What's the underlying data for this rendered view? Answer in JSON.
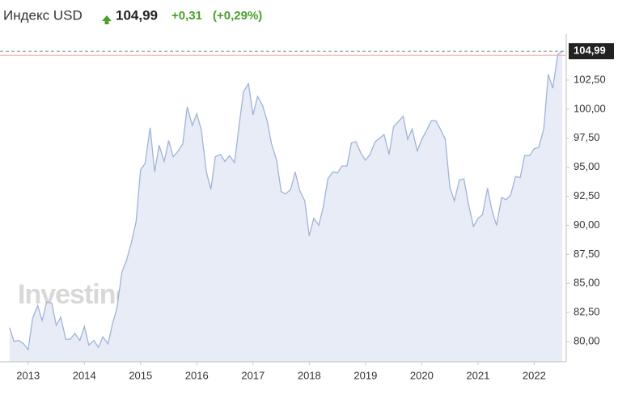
{
  "header": {
    "title": "Индекс USD",
    "price": "104,99",
    "change": "+0,31",
    "change_pct": "(+0,29%)"
  },
  "chart_data": {
    "type": "area",
    "watermark": "Investing.com",
    "color": "#9fb4d8",
    "fill": "#e8ecf6",
    "x": [
      2012.67,
      2012.75,
      2012.83,
      2012.92,
      2013,
      2013.08,
      2013.17,
      2013.25,
      2013.33,
      2013.42,
      2013.5,
      2013.58,
      2013.67,
      2013.75,
      2013.83,
      2013.92,
      2014,
      2014.08,
      2014.17,
      2014.25,
      2014.33,
      2014.42,
      2014.5,
      2014.58,
      2014.67,
      2014.75,
      2014.83,
      2014.92,
      2015,
      2015.08,
      2015.17,
      2015.25,
      2015.33,
      2015.42,
      2015.5,
      2015.58,
      2015.67,
      2015.75,
      2015.83,
      2015.92,
      2016,
      2016.08,
      2016.17,
      2016.25,
      2016.33,
      2016.42,
      2016.5,
      2016.58,
      2016.67,
      2016.75,
      2016.83,
      2016.92,
      2017,
      2017.08,
      2017.17,
      2017.25,
      2017.33,
      2017.42,
      2017.5,
      2017.58,
      2017.67,
      2017.75,
      2017.83,
      2017.92,
      2018,
      2018.08,
      2018.17,
      2018.25,
      2018.33,
      2018.42,
      2018.5,
      2018.58,
      2018.67,
      2018.75,
      2018.83,
      2018.92,
      2019,
      2019.08,
      2019.17,
      2019.25,
      2019.33,
      2019.42,
      2019.5,
      2019.58,
      2019.67,
      2019.75,
      2019.83,
      2019.92,
      2020,
      2020.08,
      2020.17,
      2020.25,
      2020.33,
      2020.42,
      2020.5,
      2020.58,
      2020.67,
      2020.75,
      2020.83,
      2020.92,
      2021,
      2021.08,
      2021.17,
      2021.25,
      2021.33,
      2021.42,
      2021.5,
      2021.58,
      2021.67,
      2021.75,
      2021.83,
      2021.92,
      2022,
      2022.08,
      2022.17,
      2022.25,
      2022.33,
      2022.42,
      2022.5
    ],
    "values": [
      81.2,
      80.0,
      80.1,
      79.8,
      79.3,
      82.0,
      83.1,
      81.8,
      83.4,
      83.3,
      81.4,
      82.1,
      80.2,
      80.2,
      80.7,
      80.1,
      81.3,
      79.7,
      80.1,
      79.5,
      80.4,
      79.8,
      81.5,
      82.9,
      86.0,
      87.0,
      88.4,
      90.3,
      94.8,
      95.3,
      98.4,
      94.6,
      96.9,
      95.5,
      97.3,
      95.9,
      96.4,
      97.0,
      100.2,
      98.6,
      99.6,
      98.2,
      94.6,
      93.1,
      95.9,
      96.1,
      95.5,
      96.0,
      95.4,
      98.5,
      101.5,
      102.2,
      99.5,
      101.1,
      100.3,
      99.0,
      97.0,
      95.6,
      92.9,
      92.7,
      93.1,
      94.6,
      93.0,
      92.1,
      89.1,
      90.6,
      90.0,
      91.6,
      94.0,
      94.6,
      94.5,
      95.1,
      95.1,
      97.1,
      97.2,
      96.2,
      95.6,
      96.1,
      97.2,
      97.5,
      97.8,
      96.1,
      98.5,
      98.9,
      99.4,
      97.4,
      98.3,
      96.4,
      97.4,
      98.1,
      99.0,
      99.0,
      98.3,
      97.4,
      93.3,
      92.1,
      93.9,
      94.0,
      91.9,
      89.9,
      90.6,
      90.9,
      93.2,
      91.3,
      90.0,
      92.4,
      92.2,
      92.6,
      94.2,
      94.1,
      96.0,
      96.0,
      96.6,
      96.7,
      98.3,
      103.0,
      101.8,
      104.7,
      104.99
    ],
    "xlim": [
      2012.5,
      2022.57
    ],
    "xticks": [
      2013,
      2014,
      2015,
      2016,
      2017,
      2018,
      2019,
      2020,
      2021,
      2022
    ],
    "ylim": [
      78.26,
      105.77
    ],
    "yticks": [
      {
        "value": 80,
        "label": "80,00"
      },
      {
        "value": 82.5,
        "label": "82,50"
      },
      {
        "value": 85,
        "label": "85,00"
      },
      {
        "value": 87.5,
        "label": "87,50"
      },
      {
        "value": 90,
        "label": "90,00"
      },
      {
        "value": 92.5,
        "label": "92,50"
      },
      {
        "value": 95,
        "label": "95,00"
      },
      {
        "value": 97.5,
        "label": "97,50"
      },
      {
        "value": 100,
        "label": "100,00"
      },
      {
        "value": 102.5,
        "label": "102,50"
      }
    ],
    "last_value": {
      "value": 104.99,
      "label": "104,99"
    }
  }
}
